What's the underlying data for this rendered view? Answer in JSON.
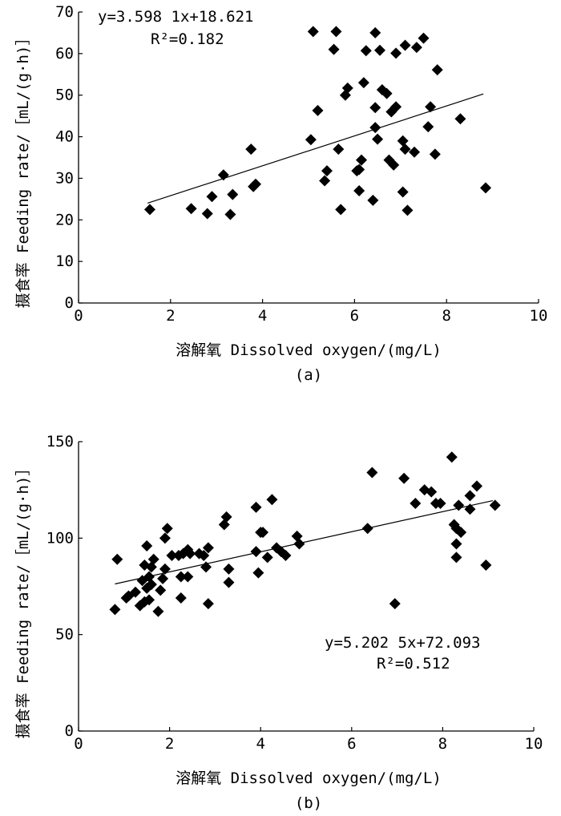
{
  "chart_data": [
    {
      "type": "scatter",
      "panel_label": "(a)",
      "xlabel": "溶解氧 Dissolved oxygen/(mg/L)",
      "ylabel": "摄食率 Feeding rate/［mL/(g·h)］",
      "xlim": [
        0,
        10
      ],
      "ylim": [
        0,
        70
      ],
      "xticks": [
        0,
        2,
        4,
        6,
        8,
        10
      ],
      "yticks": [
        0,
        10,
        20,
        30,
        40,
        50,
        60,
        70
      ],
      "equation": "y=3.598 1x+18.621",
      "r2": "R²=0.182",
      "equation_position": "top-left",
      "fit": {
        "slope": 3.5981,
        "intercept": 18.621,
        "x_range": [
          1.5,
          8.8
        ]
      },
      "points": [
        [
          1.55,
          22.5
        ],
        [
          2.45,
          22.7
        ],
        [
          2.8,
          21.5
        ],
        [
          2.9,
          25.6
        ],
        [
          3.15,
          30.8
        ],
        [
          3.3,
          21.3
        ],
        [
          3.35,
          26.1
        ],
        [
          3.75,
          37.0
        ],
        [
          3.8,
          28.0
        ],
        [
          3.85,
          28.6
        ],
        [
          5.05,
          39.3
        ],
        [
          5.1,
          65.3
        ],
        [
          5.2,
          46.3
        ],
        [
          5.35,
          29.4
        ],
        [
          5.4,
          31.8
        ],
        [
          5.55,
          61.0
        ],
        [
          5.6,
          65.3
        ],
        [
          5.65,
          37.0
        ],
        [
          5.7,
          22.5
        ],
        [
          5.8,
          50.0
        ],
        [
          5.85,
          51.7
        ],
        [
          6.05,
          31.8
        ],
        [
          6.1,
          27.0
        ],
        [
          6.1,
          32.1
        ],
        [
          6.15,
          34.4
        ],
        [
          6.2,
          53.0
        ],
        [
          6.25,
          60.7
        ],
        [
          6.4,
          24.7
        ],
        [
          6.45,
          42.2
        ],
        [
          6.45,
          47.0
        ],
        [
          6.45,
          65.0
        ],
        [
          6.5,
          39.4
        ],
        [
          6.55,
          60.8
        ],
        [
          6.6,
          51.3
        ],
        [
          6.7,
          50.4
        ],
        [
          6.75,
          34.4
        ],
        [
          6.8,
          46.0
        ],
        [
          6.85,
          33.2
        ],
        [
          6.9,
          60.1
        ],
        [
          6.9,
          47.2
        ],
        [
          7.05,
          39.0
        ],
        [
          7.05,
          26.7
        ],
        [
          7.1,
          37.0
        ],
        [
          7.1,
          62.0
        ],
        [
          7.15,
          22.3
        ],
        [
          7.3,
          36.3
        ],
        [
          7.35,
          61.5
        ],
        [
          7.5,
          63.7
        ],
        [
          7.6,
          42.4
        ],
        [
          7.65,
          47.2
        ],
        [
          7.75,
          35.8
        ],
        [
          7.8,
          56.1
        ],
        [
          8.3,
          44.3
        ],
        [
          8.85,
          27.7
        ]
      ]
    },
    {
      "type": "scatter",
      "panel_label": "(b)",
      "xlabel": "溶解氧 Dissolved oxygen/(mg/L)",
      "ylabel": "摄食率 Feeding rate/［mL/(g·h)］",
      "xlim": [
        0,
        10
      ],
      "ylim": [
        0,
        150
      ],
      "xticks": [
        0,
        2,
        4,
        6,
        8,
        10
      ],
      "yticks": [
        0,
        50,
        100,
        150
      ],
      "equation": "y=5.202 5x+72.093",
      "r2": "R²=0.512",
      "equation_position": "bottom-right",
      "fit": {
        "slope": 5.2025,
        "intercept": 72.093,
        "x_range": [
          0.8,
          9.1
        ]
      },
      "points": [
        [
          0.8,
          63
        ],
        [
          0.85,
          89
        ],
        [
          1.05,
          69
        ],
        [
          1.1,
          70
        ],
        [
          1.25,
          72
        ],
        [
          1.35,
          65
        ],
        [
          1.4,
          78
        ],
        [
          1.45,
          67
        ],
        [
          1.45,
          86
        ],
        [
          1.5,
          96
        ],
        [
          1.5,
          74
        ],
        [
          1.55,
          68
        ],
        [
          1.55,
          80
        ],
        [
          1.6,
          85
        ],
        [
          1.6,
          76
        ],
        [
          1.65,
          89
        ],
        [
          1.75,
          62
        ],
        [
          1.8,
          73
        ],
        [
          1.85,
          79
        ],
        [
          1.9,
          84
        ],
        [
          1.9,
          100
        ],
        [
          1.95,
          105
        ],
        [
          2.05,
          91
        ],
        [
          2.2,
          91
        ],
        [
          2.25,
          69
        ],
        [
          2.25,
          80
        ],
        [
          2.3,
          92
        ],
        [
          2.4,
          94
        ],
        [
          2.4,
          80
        ],
        [
          2.45,
          92
        ],
        [
          2.65,
          92
        ],
        [
          2.75,
          91
        ],
        [
          2.8,
          85
        ],
        [
          2.85,
          95
        ],
        [
          2.85,
          66
        ],
        [
          3.2,
          107
        ],
        [
          3.25,
          111
        ],
        [
          3.3,
          84
        ],
        [
          3.3,
          77
        ],
        [
          3.9,
          116
        ],
        [
          3.9,
          93
        ],
        [
          3.95,
          82
        ],
        [
          4.0,
          103
        ],
        [
          4.05,
          103
        ],
        [
          4.15,
          90
        ],
        [
          4.25,
          120
        ],
        [
          4.35,
          95
        ],
        [
          4.45,
          93
        ],
        [
          4.55,
          91
        ],
        [
          4.8,
          101
        ],
        [
          4.85,
          97
        ],
        [
          6.35,
          105
        ],
        [
          6.45,
          134
        ],
        [
          6.95,
          66
        ],
        [
          7.15,
          131
        ],
        [
          7.4,
          118
        ],
        [
          7.6,
          125
        ],
        [
          7.75,
          124
        ],
        [
          7.85,
          118
        ],
        [
          7.95,
          118
        ],
        [
          8.2,
          142
        ],
        [
          8.25,
          107
        ],
        [
          8.3,
          105
        ],
        [
          8.3,
          97
        ],
        [
          8.3,
          90
        ],
        [
          8.35,
          117
        ],
        [
          8.4,
          103
        ],
        [
          8.6,
          115
        ],
        [
          8.6,
          122
        ],
        [
          8.75,
          127
        ],
        [
          8.95,
          86
        ],
        [
          9.15,
          117
        ]
      ]
    }
  ]
}
